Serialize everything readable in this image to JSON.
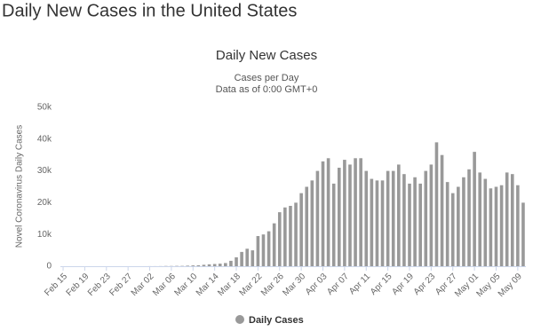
{
  "header": {
    "title": "Daily New Cases in the United States"
  },
  "chart_data": {
    "type": "bar",
    "title": "Daily New Cases",
    "subtitle": [
      "Cases per Day",
      "Data as of 0:00 GMT+0"
    ],
    "y_label": "Novel Coronavirus Daily Cases",
    "categories": [
      "Feb 15",
      null,
      null,
      null,
      "Feb 19",
      null,
      null,
      null,
      "Feb 23",
      null,
      null,
      null,
      "Feb 27",
      null,
      null,
      null,
      "Mar 02",
      null,
      null,
      null,
      "Mar 06",
      null,
      null,
      null,
      "Mar 10",
      null,
      null,
      null,
      "Mar 14",
      null,
      null,
      null,
      "Mar 18",
      null,
      null,
      null,
      "Mar 22",
      null,
      null,
      null,
      "Mar 26",
      null,
      null,
      null,
      "Mar 30",
      null,
      null,
      null,
      "Apr 03",
      null,
      null,
      null,
      "Apr 07",
      null,
      null,
      null,
      "Apr 11",
      null,
      null,
      null,
      "Apr 15",
      null,
      null,
      null,
      "Apr 19",
      null,
      null,
      null,
      "Apr 23",
      null,
      null,
      null,
      "Apr 27",
      null,
      null,
      null,
      "May 01",
      null,
      null,
      null,
      "May 05",
      null,
      null,
      null,
      "May 09",
      null
    ],
    "series": [
      {
        "name": "Daily Cases",
        "color": "#999999",
        "values": [
          0,
          0,
          0,
          0,
          0,
          0,
          1,
          0,
          0,
          0,
          1,
          0,
          0,
          3,
          5,
          10,
          20,
          20,
          30,
          70,
          70,
          100,
          100,
          170,
          250,
          300,
          450,
          600,
          700,
          800,
          1000,
          1700,
          2800,
          4500,
          5500,
          5000,
          9500,
          10000,
          11000,
          13500,
          17000,
          18500,
          19000,
          20000,
          23000,
          25000,
          27000,
          30000,
          33000,
          34000,
          26000,
          31000,
          33500,
          32000,
          34000,
          34000,
          30000,
          27500,
          27000,
          27000,
          30000,
          30000,
          32000,
          29000,
          26000,
          28000,
          26000,
          30000,
          32000,
          39000,
          35000,
          26500,
          23000,
          25000,
          28000,
          30500,
          36000,
          29500,
          27500,
          24500,
          25000,
          25500,
          29500,
          29000,
          25500,
          20000
        ]
      }
    ],
    "ylim": [
      0,
      50000
    ],
    "yticks": [
      0,
      {
        "value": 10000,
        "label": "10k"
      },
      {
        "value": 20000,
        "label": "20k"
      },
      {
        "value": 30000,
        "label": "30k"
      },
      {
        "value": 40000,
        "label": "40k"
      },
      {
        "value": 50000,
        "label": "50k"
      }
    ],
    "grid": false
  }
}
